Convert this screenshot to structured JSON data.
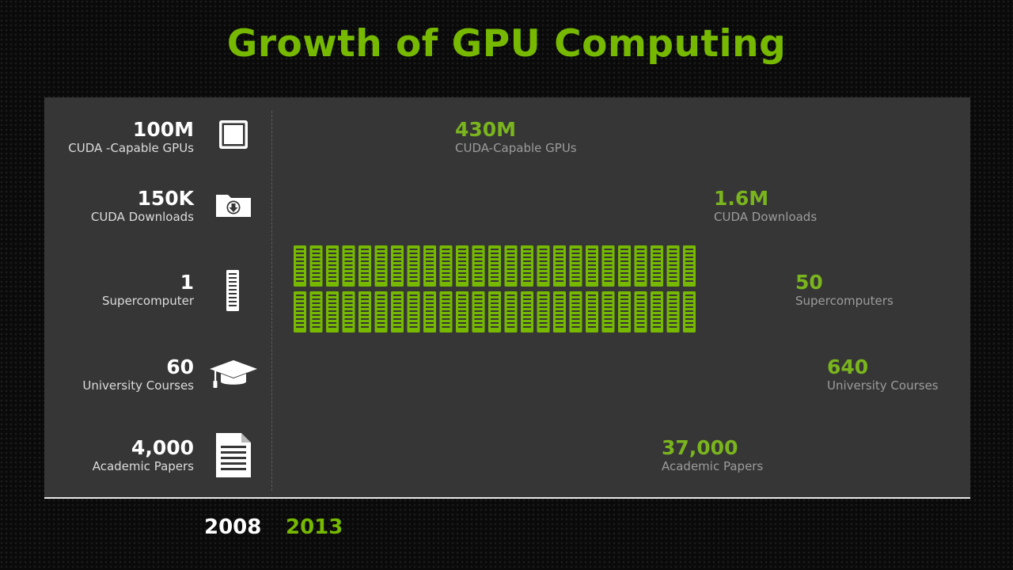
{
  "title": "Growth of GPU Computing",
  "colors": {
    "accent": "#76b900",
    "panel": "#363636",
    "text_light": "#ffffff",
    "caption_dim": "#9c9c9c"
  },
  "chart_data": {
    "type": "pictograph",
    "title": "Growth of GPU Computing",
    "periods": [
      "2008",
      "2013"
    ],
    "rows": [
      {
        "caption": "CUDA -Capable GPUs",
        "caption_2013": "CUDA-Capable GPUs",
        "value_2008": 100000000,
        "label_2008": "100M",
        "value_2013": 430000000,
        "label_2013": "430M",
        "icon": "gpu-chip-icon"
      },
      {
        "caption": "CUDA Downloads",
        "caption_2013": "CUDA Downloads",
        "value_2008": 150000,
        "label_2008": "150K",
        "value_2013": 1600000,
        "label_2013": "1.6M",
        "icon": "download-folder-icon"
      },
      {
        "caption": "Supercomputer",
        "caption_2013": "Supercomputers",
        "value_2008": 1,
        "label_2008": "1",
        "value_2013": 50,
        "label_2013": "50",
        "icon": "server-rack-icon"
      },
      {
        "caption": "University Courses",
        "caption_2013": "University Courses",
        "value_2008": 60,
        "label_2008": "60",
        "value_2013": 640,
        "label_2013": "640",
        "icon": "graduation-cap-icon"
      },
      {
        "caption": "Academic Papers",
        "caption_2013": "Academic Papers",
        "value_2008": 4000,
        "label_2008": "4,000",
        "value_2013": 37000,
        "label_2013": "37,000",
        "icon": "document-icon"
      }
    ]
  }
}
